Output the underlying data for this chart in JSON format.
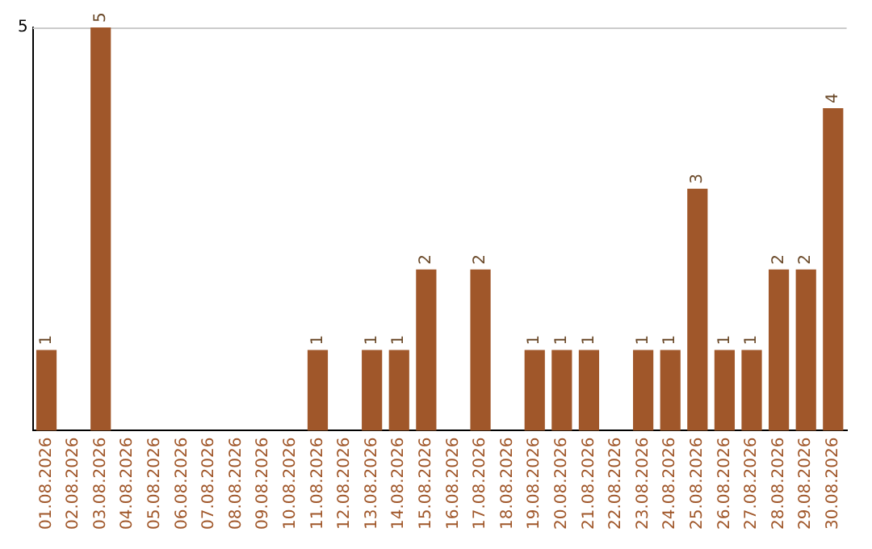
{
  "chart_data": {
    "type": "bar",
    "categories": [
      "01.08.2026",
      "02.08.2026",
      "03.08.2026",
      "04.08.2026",
      "05.08.2026",
      "06.08.2026",
      "07.08.2026",
      "08.08.2026",
      "09.08.2026",
      "10.08.2026",
      "11.08.2026",
      "12.08.2026",
      "13.08.2026",
      "14.08.2026",
      "15.08.2026",
      "16.08.2026",
      "17.08.2026",
      "18.08.2026",
      "19.08.2026",
      "20.08.2026",
      "21.08.2026",
      "22.08.2026",
      "23.08.2026",
      "24.08.2026",
      "25.08.2026",
      "26.08.2026",
      "27.08.2026",
      "28.08.2026",
      "29.08.2026",
      "30.08.2026"
    ],
    "values": [
      1,
      0,
      5,
      0,
      0,
      0,
      0,
      0,
      0,
      0,
      1,
      0,
      1,
      1,
      2,
      0,
      2,
      0,
      1,
      1,
      1,
      0,
      1,
      1,
      3,
      1,
      1,
      2,
      2,
      4
    ],
    "value_labels": [
      "1",
      null,
      "5",
      null,
      null,
      null,
      null,
      null,
      null,
      null,
      "1",
      null,
      "1",
      "1",
      "2",
      null,
      "2",
      null,
      "1",
      "1",
      "1",
      null,
      "1",
      "1",
      "3",
      "1",
      "1",
      "2",
      "2",
      "4"
    ],
    "color": "#a0572a",
    "ylim": [
      0,
      5
    ],
    "yticks": [
      5
    ],
    "legend": false
  }
}
